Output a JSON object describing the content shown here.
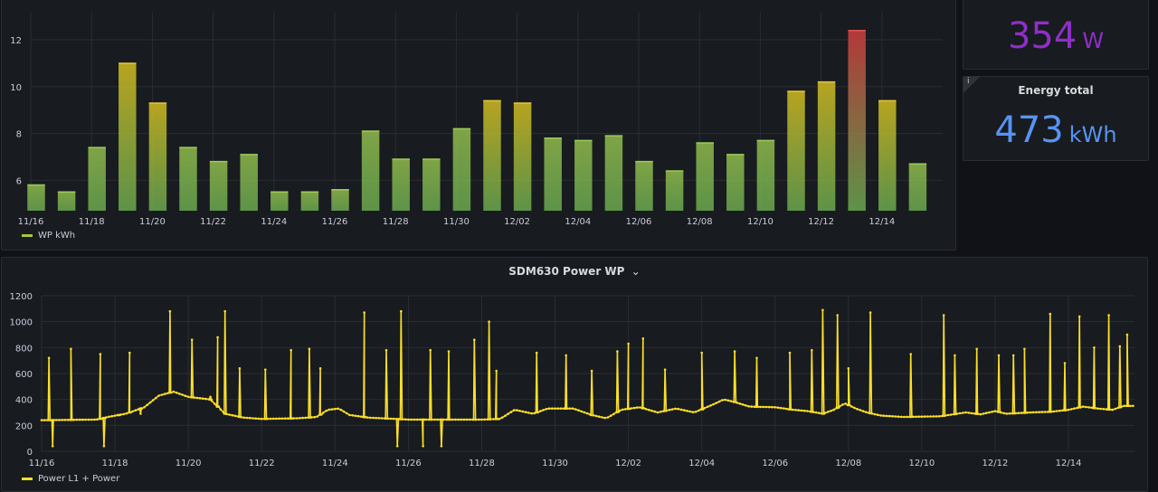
{
  "panels": {
    "bar_title": "",
    "bar_legend": "WP kWh",
    "line_title": "SDM630 Power WP",
    "line_legend": "Power L1 + Power",
    "stat_power": {
      "title": "",
      "value": "354",
      "unit": "W",
      "color": "#8f2fc7"
    },
    "stat_energy": {
      "title": "Energy total",
      "value": "473",
      "unit": "kWh",
      "color": "#5794f2",
      "info": "i"
    }
  },
  "colors": {
    "bar_low": "#6aa84f",
    "bar_mid": "#c8b320",
    "bar_high": "#c43c3c",
    "line": "#fade2a",
    "grid": "#2a2d33",
    "axis_text": "#ccccdc"
  },
  "chart_data": [
    {
      "type": "bar",
      "title": "",
      "categories": [
        "11/16",
        "11/17",
        "11/18",
        "11/19",
        "11/20",
        "11/21",
        "11/22",
        "11/23",
        "11/24",
        "11/25",
        "11/26",
        "11/27",
        "11/28",
        "11/29",
        "11/30",
        "12/01",
        "12/02",
        "12/03",
        "12/04",
        "12/05",
        "12/06",
        "12/07",
        "12/08",
        "12/09",
        "12/10",
        "12/11",
        "12/12",
        "12/13",
        "12/14",
        "12/15"
      ],
      "x_tick_labels": [
        "11/16",
        "11/18",
        "11/20",
        "11/22",
        "11/24",
        "11/26",
        "11/28",
        "11/30",
        "12/02",
        "12/04",
        "12/06",
        "12/08",
        "12/10",
        "12/12",
        "12/14"
      ],
      "series": [
        {
          "name": "WP kWh",
          "values": [
            5.8,
            5.5,
            7.4,
            11.0,
            9.3,
            7.4,
            6.8,
            7.1,
            5.5,
            5.5,
            5.6,
            8.1,
            6.9,
            6.9,
            8.2,
            9.4,
            9.3,
            7.8,
            7.7,
            7.9,
            6.8,
            6.4,
            7.6,
            7.1,
            7.7,
            9.8,
            10.2,
            12.4,
            9.4,
            6.7
          ]
        }
      ],
      "y_ticks": [
        6,
        8,
        10,
        12
      ],
      "ylim": [
        4.7,
        13.2
      ],
      "grid": true,
      "legend": "bottom-left"
    },
    {
      "type": "line",
      "title": "SDM630 Power WP",
      "x_tick_labels": [
        "11/16",
        "11/18",
        "11/20",
        "11/22",
        "11/24",
        "11/26",
        "11/28",
        "11/30",
        "12/02",
        "12/04",
        "12/06",
        "12/08",
        "12/10",
        "12/12",
        "12/14"
      ],
      "x_range_days": [
        0,
        29.8
      ],
      "y_ticks": [
        0,
        200,
        400,
        600,
        800,
        1000,
        1200
      ],
      "ylim": [
        0,
        1200
      ],
      "series": [
        {
          "name": "Power L1 + Power",
          "baseline": [
            [
              0,
              240
            ],
            [
              1.5,
              245
            ],
            [
              1.9,
              270
            ],
            [
              2.3,
              290
            ],
            [
              2.8,
              340
            ],
            [
              3.2,
              430
            ],
            [
              3.6,
              460
            ],
            [
              4.0,
              420
            ],
            [
              4.6,
              400
            ],
            [
              5.0,
              290
            ],
            [
              5.5,
              260
            ],
            [
              6.0,
              250
            ],
            [
              7.0,
              255
            ],
            [
              7.5,
              265
            ],
            [
              7.8,
              320
            ],
            [
              8.1,
              330
            ],
            [
              8.4,
              280
            ],
            [
              8.9,
              260
            ],
            [
              10.0,
              245
            ],
            [
              12.0,
              245
            ],
            [
              12.5,
              250
            ],
            [
              12.9,
              320
            ],
            [
              13.4,
              290
            ],
            [
              13.8,
              330
            ],
            [
              14.5,
              330
            ],
            [
              15.0,
              280
            ],
            [
              15.4,
              255
            ],
            [
              15.8,
              320
            ],
            [
              16.3,
              340
            ],
            [
              16.8,
              300
            ],
            [
              17.3,
              330
            ],
            [
              17.8,
              300
            ],
            [
              18.3,
              360
            ],
            [
              18.6,
              400
            ],
            [
              18.9,
              380
            ],
            [
              19.3,
              345
            ],
            [
              20.0,
              340
            ],
            [
              20.5,
              320
            ],
            [
              20.9,
              310
            ],
            [
              21.3,
              290
            ],
            [
              21.6,
              320
            ],
            [
              21.9,
              370
            ],
            [
              22.2,
              330
            ],
            [
              22.5,
              300
            ],
            [
              22.9,
              275
            ],
            [
              23.5,
              265
            ],
            [
              24.5,
              270
            ],
            [
              25.2,
              300
            ],
            [
              25.6,
              285
            ],
            [
              26.0,
              310
            ],
            [
              26.3,
              290
            ],
            [
              27.0,
              300
            ],
            [
              27.5,
              305
            ],
            [
              28.0,
              320
            ],
            [
              28.4,
              345
            ],
            [
              28.8,
              330
            ],
            [
              29.2,
              320
            ],
            [
              29.5,
              350
            ],
            [
              29.8,
              350
            ]
          ],
          "dips": [
            [
              0.3,
              40
            ],
            [
              1.7,
              40
            ],
            [
              2.1,
              280
            ],
            [
              2.7,
              290
            ],
            [
              9.7,
              40
            ],
            [
              10.4,
              40
            ],
            [
              10.9,
              40
            ]
          ],
          "spikes": [
            [
              0.2,
              720
            ],
            [
              0.8,
              790
            ],
            [
              1.6,
              750
            ],
            [
              2.4,
              760
            ],
            [
              3.5,
              1080
            ],
            [
              4.1,
              860
            ],
            [
              4.6,
              420
            ],
            [
              4.8,
              880
            ],
            [
              5.0,
              1080
            ],
            [
              5.4,
              640
            ],
            [
              6.1,
              630
            ],
            [
              6.8,
              780
            ],
            [
              7.3,
              790
            ],
            [
              7.6,
              640
            ],
            [
              8.8,
              1070
            ],
            [
              9.4,
              780
            ],
            [
              9.8,
              1080
            ],
            [
              10.6,
              780
            ],
            [
              11.1,
              770
            ],
            [
              11.8,
              860
            ],
            [
              12.2,
              1000
            ],
            [
              12.4,
              620
            ],
            [
              13.5,
              760
            ],
            [
              14.3,
              740
            ],
            [
              15.0,
              620
            ],
            [
              15.7,
              770
            ],
            [
              16.0,
              830
            ],
            [
              16.4,
              870
            ],
            [
              17.0,
              630
            ],
            [
              18.0,
              760
            ],
            [
              18.9,
              770
            ],
            [
              19.5,
              720
            ],
            [
              20.4,
              760
            ],
            [
              21.0,
              780
            ],
            [
              21.3,
              1090
            ],
            [
              21.7,
              1050
            ],
            [
              22.0,
              640
            ],
            [
              22.6,
              1070
            ],
            [
              23.7,
              750
            ],
            [
              24.6,
              1050
            ],
            [
              24.9,
              740
            ],
            [
              25.5,
              790
            ],
            [
              26.1,
              740
            ],
            [
              26.5,
              740
            ],
            [
              26.8,
              790
            ],
            [
              27.5,
              1060
            ],
            [
              27.9,
              680
            ],
            [
              28.3,
              1040
            ],
            [
              28.7,
              800
            ],
            [
              29.1,
              1050
            ],
            [
              29.4,
              810
            ],
            [
              29.6,
              900
            ]
          ]
        }
      ],
      "legend": "bottom-left",
      "grid": true
    }
  ]
}
